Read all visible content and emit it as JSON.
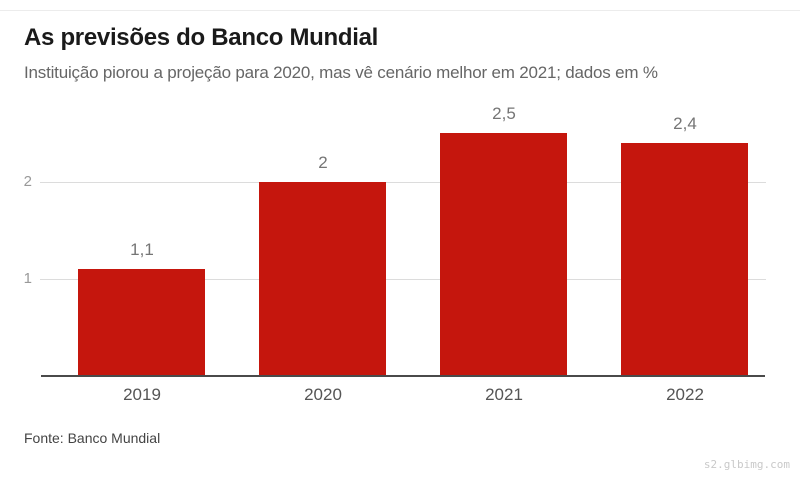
{
  "page": {
    "title": "As previsões do Banco Mundial",
    "subtitle": "Instituição piorou a projeção para 2020, mas vê cenário melhor em 2021; dados em %",
    "source": "Fonte: Banco Mundial",
    "watermark": "s2.glbimg.com"
  },
  "colors": {
    "bar": "#c5160d",
    "grid": "#dcdcdc",
    "axis": "#4a4a4a",
    "title": "#1a1a1a",
    "subtitle": "#666666",
    "ytick": "#999999",
    "value_label": "#757575",
    "xtick": "#555555"
  },
  "chart_data": {
    "type": "bar",
    "title": "As previsões do Banco Mundial",
    "subtitle": "Instituição piorou a projeção para 2020, mas vê cenário melhor em 2021; dados em %",
    "categories": [
      "2019",
      "2020",
      "2021",
      "2022"
    ],
    "values": [
      1.1,
      2,
      2.5,
      2.4
    ],
    "value_labels": [
      "1,1",
      "2",
      "2,5",
      "2,4"
    ],
    "xlabel": "",
    "ylabel": "",
    "yticks": [
      1,
      2
    ],
    "ylim": [
      0,
      2.85
    ],
    "grid": true,
    "legend": false,
    "bar_color": "#c5160d",
    "source": "Fonte: Banco Mundial"
  }
}
